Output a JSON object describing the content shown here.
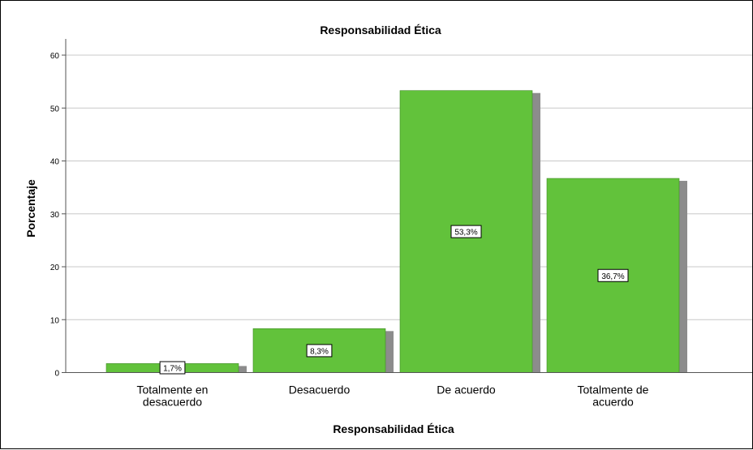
{
  "chart_data": {
    "type": "bar",
    "title": "Responsabilidad Ética",
    "xlabel": "Responsabilidad Ética",
    "ylabel": "Porcentaje",
    "categories": [
      [
        "Totalmente en",
        "desacuerdo"
      ],
      [
        "Desacuerdo"
      ],
      [
        "De acuerdo"
      ],
      [
        "Totalmente de",
        "acuerdo"
      ]
    ],
    "values": [
      1.7,
      8.3,
      53.3,
      36.7
    ],
    "data_labels": [
      "1,7%",
      "8,3%",
      "53,3%",
      "36,7%"
    ],
    "ylim": [
      0,
      62
    ],
    "yticks": [
      0,
      10,
      20,
      30,
      40,
      50,
      60
    ],
    "grid": true,
    "colors": {
      "bar": "#62c23b",
      "bar_edge": "#3e8a22",
      "shadow": "#8c8c8c",
      "grid": "#c8c8c8",
      "axis": "#555555"
    }
  }
}
